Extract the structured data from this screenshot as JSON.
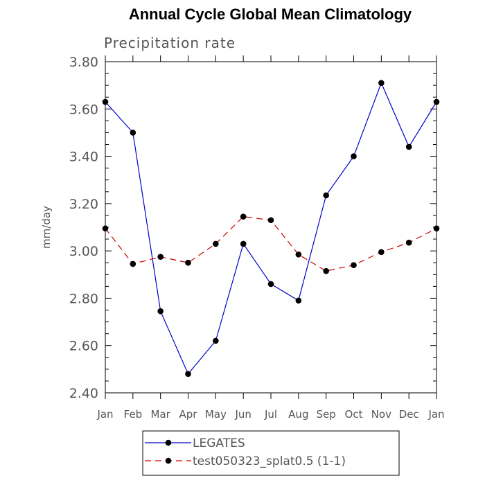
{
  "chart_data": {
    "type": "line",
    "title": "Annual Cycle Global Mean Climatology",
    "subtitle": "Precipitation rate",
    "xlabel": "",
    "ylabel": "mm/day",
    "categories": [
      "Jan",
      "Feb",
      "Mar",
      "Apr",
      "May",
      "Jun",
      "Jul",
      "Aug",
      "Sep",
      "Oct",
      "Nov",
      "Dec",
      "Jan"
    ],
    "ylim": [
      2.4,
      3.8
    ],
    "yticks": [
      "2.40",
      "2.60",
      "2.80",
      "3.00",
      "3.20",
      "3.40",
      "3.60",
      "3.80"
    ],
    "grid": false,
    "legend_position": "bottom-center",
    "series": [
      {
        "name": "LEGATES",
        "color": "#0000cc",
        "dash": "solid",
        "values": [
          3.63,
          3.5,
          2.745,
          2.48,
          2.62,
          3.03,
          2.86,
          2.79,
          3.235,
          3.4,
          3.71,
          3.44,
          3.63
        ]
      },
      {
        "name": "test050323_splat0.5 (1-1)",
        "color": "#cc0000",
        "dash": "dashed",
        "values": [
          3.095,
          2.945,
          2.975,
          2.95,
          3.03,
          3.145,
          3.13,
          2.985,
          2.915,
          2.94,
          2.995,
          3.035,
          3.095
        ]
      }
    ]
  }
}
